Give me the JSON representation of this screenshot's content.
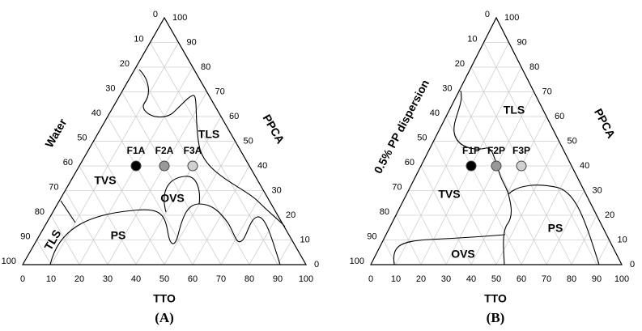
{
  "chart_data": [
    {
      "type": "ternary",
      "panel_label": "(A)",
      "axis_labels": {
        "left": "Water",
        "right": "PPCA",
        "bottom": "TTO"
      },
      "bottom_ticks": [
        0,
        10,
        20,
        30,
        40,
        50,
        60,
        70,
        80,
        90,
        100
      ],
      "left_ticks": [
        0,
        10,
        20,
        30,
        40,
        50,
        60,
        70,
        80,
        90,
        100
      ],
      "right_ticks": [
        0,
        10,
        20,
        30,
        40,
        50,
        60,
        70,
        80,
        90,
        100
      ],
      "regions": [
        "TLS",
        "TVS",
        "OVS",
        "PS",
        "TLS"
      ],
      "points": [
        {
          "label": "F1A",
          "color": "#000000",
          "tto": 20,
          "ppca": 40
        },
        {
          "label": "F2A",
          "color": "#999999",
          "tto": 30,
          "ppca": 40
        },
        {
          "label": "F3A",
          "color": "#d0d0d0",
          "tto": 40,
          "ppca": 40
        }
      ]
    },
    {
      "type": "ternary",
      "panel_label": "(B)",
      "axis_labels": {
        "left": "0.5% PP dispersion",
        "right": "PPCA",
        "bottom": "TTO"
      },
      "bottom_ticks": [
        0,
        10,
        20,
        30,
        40,
        50,
        60,
        70,
        80,
        90,
        100
      ],
      "left_ticks": [
        0,
        10,
        20,
        30,
        40,
        50,
        60,
        70,
        80,
        90,
        100
      ],
      "right_ticks": [
        0,
        10,
        20,
        30,
        40,
        50,
        60,
        70,
        80,
        90,
        100
      ],
      "regions": [
        "TLS",
        "TVS",
        "PS",
        "OVS"
      ],
      "points": [
        {
          "label": "F1P",
          "color": "#000000",
          "tto": 20,
          "ppca": 40
        },
        {
          "label": "F2P",
          "color": "#999999",
          "tto": 30,
          "ppca": 40
        },
        {
          "label": "F3P",
          "color": "#d0d0d0",
          "tto": 40,
          "ppca": 40
        }
      ]
    }
  ]
}
